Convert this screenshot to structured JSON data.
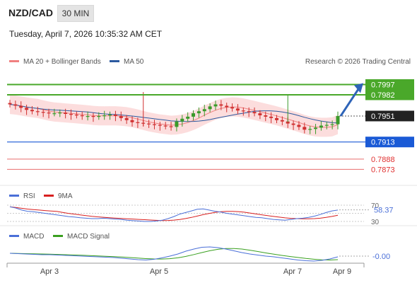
{
  "header": {
    "symbol": "NZD/CAD",
    "timeframe": "30 MIN",
    "datetime": "Tuesday, April 7, 2026 10:35:32 AM CET"
  },
  "legend": {
    "items": [
      {
        "label": "MA 20 + Bollinger Bands",
        "color": "#f08080"
      },
      {
        "label": "MA 50",
        "color": "#2c5aa0"
      }
    ],
    "credit": "Research © 2026 Trading Central"
  },
  "colors": {
    "green_level": "#4aa82a",
    "blue_level": "#1a5ad6",
    "red_level": "#e03030",
    "current_price_box": "#222222",
    "arrow": "#2e64b8",
    "candle_up": "#3a9a2a",
    "candle_down": "#d03030",
    "bollinger_fill": "#fbd5d5",
    "ma20": "#f08080",
    "ma50": "#2c5aa0",
    "rsi": "#4a6fd8",
    "rsi_ma": "#d82020",
    "macd": "#4a6fd8",
    "macd_signal": "#3aa020"
  },
  "chart_data": [
    {
      "type": "candlestick",
      "title": "NZD/CAD",
      "x_tick_labels": [
        "Apr 3",
        "Apr 5",
        "Apr 7",
        "Apr 9"
      ],
      "levels": [
        {
          "value": 0.7997,
          "label": "0.7997",
          "kind": "resistance",
          "color": "#4aa82a"
        },
        {
          "value": 0.7982,
          "label": "0.7982",
          "kind": "resistance",
          "color": "#4aa82a"
        },
        {
          "value": 0.7951,
          "label": "0.7951",
          "kind": "current",
          "color": "#222222"
        },
        {
          "value": 0.7913,
          "label": "0.7913",
          "kind": "pivot",
          "color": "#1a5ad6"
        },
        {
          "value": 0.7888,
          "label": "0.7888",
          "kind": "support",
          "color": "#e03030"
        },
        {
          "value": 0.7873,
          "label": "0.7873",
          "kind": "support",
          "color": "#e03030"
        }
      ],
      "ylim": [
        0.7862,
        0.8012
      ],
      "candle_close_profile": [
        0.7968,
        0.7966,
        0.7963,
        0.796,
        0.7958,
        0.7957,
        0.7956,
        0.7955,
        0.7955,
        0.7956,
        0.7954,
        0.7953,
        0.7952,
        0.7951,
        0.7951,
        0.795,
        0.7951,
        0.7952,
        0.7953,
        0.7951,
        0.7948,
        0.7945,
        0.7942,
        0.7941,
        0.794,
        0.7939,
        0.7938,
        0.7937,
        0.7936,
        0.7935,
        0.7943,
        0.7947,
        0.795,
        0.7955,
        0.7958,
        0.7961,
        0.7965,
        0.7968,
        0.7966,
        0.7964,
        0.7962,
        0.7959,
        0.7958,
        0.7957,
        0.7955,
        0.7952,
        0.795,
        0.7948,
        0.7945,
        0.7943,
        0.794,
        0.7938,
        0.7935,
        0.7931,
        0.7932,
        0.7934,
        0.7937,
        0.7938,
        0.7939,
        0.7951
      ],
      "projection": {
        "from": 0.7951,
        "to": 0.7997
      }
    },
    {
      "type": "line",
      "title": "RSI",
      "series": [
        {
          "name": "RSI",
          "color": "#4a6fd8"
        },
        {
          "name": "9MA",
          "color": "#d82020"
        }
      ],
      "tick_labels": [
        "70",
        "30"
      ],
      "ylim": [
        20,
        80
      ],
      "current_value": "58.37",
      "rsi_profile": [
        66,
        63,
        58,
        55,
        54,
        52,
        50,
        48,
        46,
        44,
        42,
        41,
        39,
        38,
        37,
        37,
        38,
        37,
        36,
        35,
        33,
        32,
        31,
        30,
        30,
        31,
        33,
        37,
        42,
        48,
        52,
        56,
        60,
        61,
        58,
        55,
        53,
        50,
        48,
        46,
        44,
        42,
        40,
        39,
        37,
        35,
        34,
        33,
        35,
        37,
        38,
        40,
        43,
        47,
        52,
        56,
        58
      ]
    },
    {
      "type": "line",
      "title": "MACD",
      "series": [
        {
          "name": "MACD",
          "color": "#4a6fd8"
        },
        {
          "name": "MACD Signal",
          "color": "#3aa020"
        }
      ],
      "current_value": "-0.00",
      "macd_profile": [
        0.0,
        -0.0001,
        -0.0002,
        -0.0003,
        -0.0004,
        -0.0004,
        -0.0005,
        -0.0006,
        -0.0007,
        -0.0008,
        -0.0009,
        -0.001,
        -0.0011,
        -0.0012,
        -0.0014,
        -0.0016,
        -0.0018,
        -0.0019,
        -0.0017,
        -0.0013,
        -0.0008,
        -0.0002,
        0.0006,
        0.0012,
        0.0017,
        0.0018,
        0.0016,
        0.0012,
        0.0007,
        0.0002,
        -0.0002,
        -0.0005,
        -0.0008,
        -0.001,
        -0.0013,
        -0.0016,
        -0.0019,
        -0.0021,
        -0.0022,
        -0.002,
        -0.0016,
        -0.001
      ]
    }
  ]
}
